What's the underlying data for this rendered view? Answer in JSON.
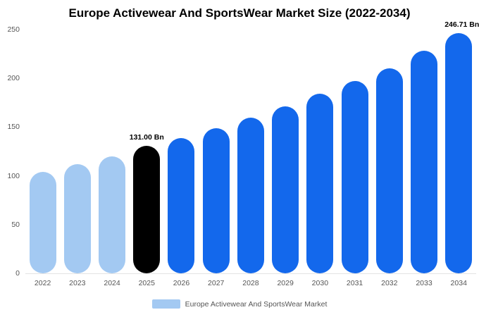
{
  "title": "Europe Activewear And SportsWear Market Size (2022-2034)",
  "legend": {
    "label": "Europe Activewear And SportsWear Market"
  },
  "colors": {
    "light_blue": "#a3c9f2",
    "black": "#000000",
    "blue": "#1368ec",
    "axis_text": "#555555"
  },
  "chart_data": {
    "type": "bar",
    "title": "Europe Activewear And SportsWear Market Size (2022-2034)",
    "categories": [
      "2022",
      "2023",
      "2024",
      "2025",
      "2026",
      "2027",
      "2028",
      "2029",
      "2030",
      "2031",
      "2032",
      "2033",
      "2034"
    ],
    "values": [
      104,
      112,
      120,
      131,
      139,
      149,
      160,
      171,
      184,
      197,
      210,
      228,
      246.71
    ],
    "bar_colors": [
      "light_blue",
      "light_blue",
      "light_blue",
      "black",
      "blue",
      "blue",
      "blue",
      "blue",
      "blue",
      "blue",
      "blue",
      "blue",
      "blue"
    ],
    "annotations": [
      {
        "category": "2025",
        "text": "131.00 Bn"
      },
      {
        "category": "2034",
        "text": "246.71 Bn"
      }
    ],
    "y_ticks": [
      0,
      50,
      100,
      150,
      200,
      250
    ],
    "ylim": [
      0,
      250
    ],
    "xlabel": "",
    "ylabel": "",
    "grid": false,
    "legend": [
      "Europe Activewear And SportsWear Market"
    ],
    "legend_position": "bottom",
    "unit": "Bn"
  }
}
